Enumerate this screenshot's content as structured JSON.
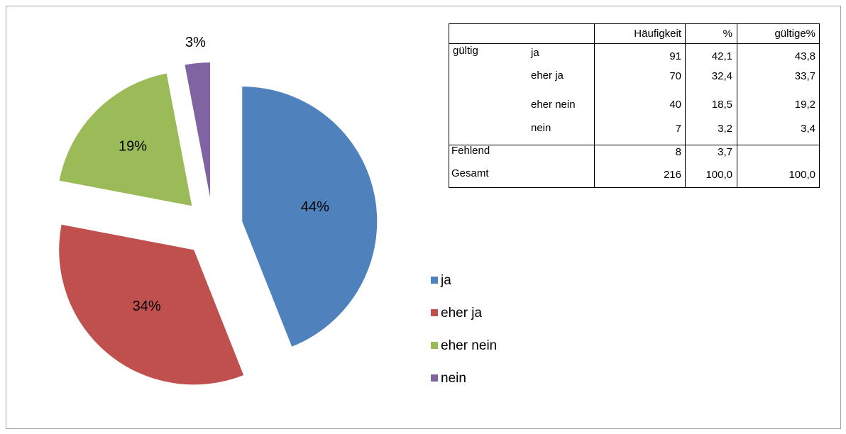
{
  "chart_data": {
    "type": "pie",
    "categories": [
      "ja",
      "eher ja",
      "eher nein",
      "nein"
    ],
    "values": [
      44,
      34,
      19,
      3
    ],
    "value_labels": [
      "44%",
      "34%",
      "19%",
      "3%"
    ],
    "series_colors": [
      "#4f81bd",
      "#c0504d",
      "#9bbb59",
      "#8064a2"
    ],
    "exploded": true,
    "legend": "right"
  },
  "table": {
    "columns": [
      "Häufigkeit",
      "%",
      "gültige%"
    ],
    "groups": [
      {
        "label": "gültig",
        "rows": [
          {
            "label": "ja",
            "cells": [
              "91",
              "42,1",
              "43,8"
            ]
          },
          {
            "label": "eher ja",
            "cells": [
              "70",
              "32,4",
              "33,7"
            ]
          },
          {
            "label": "eher nein",
            "cells": [
              "40",
              "18,5",
              "19,2"
            ]
          },
          {
            "label": "nein",
            "cells": [
              "7",
              "3,2",
              "3,4"
            ]
          }
        ]
      },
      {
        "label": "Fehlend",
        "cells": [
          "8",
          "3,7"
        ]
      },
      {
        "label": "Gesamt",
        "cells": [
          "216",
          "100,0",
          "100,0"
        ]
      }
    ]
  }
}
